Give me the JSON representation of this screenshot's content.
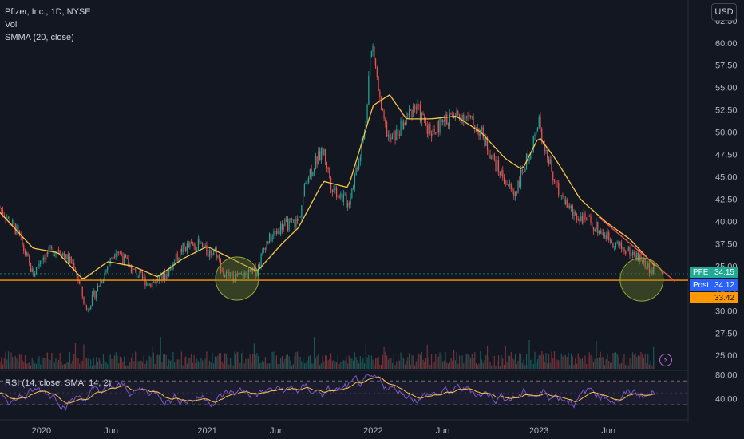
{
  "header": {
    "symbol": "Pfizer, Inc., 1D, NYSE",
    "vol_label": "Vol",
    "smma_label": "SMMA (20, close)",
    "rsi_label": "RSI (14, close, SMA, 14, 2)",
    "currency_button": "USD"
  },
  "badges": {
    "pfe_label": "PFE",
    "pfe_value": "34.15",
    "post_label": "Post",
    "post_value": "34.12",
    "line_value": "33.42"
  },
  "icons": {
    "flash": "lightning-icon"
  },
  "colors": {
    "background": "#131722",
    "up": "#26a69a",
    "down": "#ef5350",
    "smma": "#f7c548",
    "rsi": "#7e57c2",
    "rsi_ma": "#f7c548",
    "support_line": "#ff9800",
    "trend_line": "#ef5350"
  },
  "chart_data": {
    "type": "candlestick",
    "price_axis": {
      "ticks": [
        "62.50",
        "60.00",
        "57.50",
        "55.00",
        "52.50",
        "50.00",
        "47.50",
        "45.00",
        "42.50",
        "40.00",
        "37.50",
        "35.00",
        "32.50",
        "30.00",
        "27.50",
        "25.00"
      ],
      "range": [
        23.5,
        63.2
      ]
    },
    "rsi_axis": {
      "ticks": [
        "80.00",
        "40.00"
      ],
      "range": [
        10,
        85
      ]
    },
    "time_axis": {
      "ticks": [
        "2020",
        "Jun",
        "2021",
        "Jun",
        "2022",
        "Jun",
        "2023",
        "Jun"
      ]
    },
    "price_path": [
      [
        2019.75,
        41.5
      ],
      [
        2019.85,
        39
      ],
      [
        2019.95,
        34
      ],
      [
        2020.0,
        36
      ],
      [
        2020.1,
        37
      ],
      [
        2020.2,
        35
      ],
      [
        2020.27,
        30
      ],
      [
        2020.35,
        33
      ],
      [
        2020.45,
        37
      ],
      [
        2020.55,
        34.5
      ],
      [
        2020.65,
        33
      ],
      [
        2020.75,
        34
      ],
      [
        2020.85,
        37
      ],
      [
        2020.95,
        37.5
      ],
      [
        2021.0,
        36.5
      ],
      [
        2021.05,
        36.8
      ],
      [
        2021.1,
        34
      ],
      [
        2021.2,
        33.8
      ],
      [
        2021.3,
        34.5
      ],
      [
        2021.35,
        37.5
      ],
      [
        2021.45,
        39.5
      ],
      [
        2021.55,
        40
      ],
      [
        2021.6,
        45
      ],
      [
        2021.7,
        48
      ],
      [
        2021.75,
        44
      ],
      [
        2021.85,
        42
      ],
      [
        2021.95,
        50
      ],
      [
        2021.98,
        58
      ],
      [
        2022.0,
        59.5
      ],
      [
        2022.05,
        52
      ],
      [
        2022.1,
        49
      ],
      [
        2022.15,
        50
      ],
      [
        2022.25,
        53
      ],
      [
        2022.35,
        50
      ],
      [
        2022.45,
        51.5
      ],
      [
        2022.55,
        52
      ],
      [
        2022.65,
        50
      ],
      [
        2022.75,
        46
      ],
      [
        2022.85,
        43
      ],
      [
        2022.95,
        48
      ],
      [
        2023.0,
        51
      ],
      [
        2023.1,
        44
      ],
      [
        2023.2,
        41
      ],
      [
        2023.3,
        40
      ],
      [
        2023.4,
        38.5
      ],
      [
        2023.5,
        37
      ],
      [
        2023.6,
        36
      ],
      [
        2023.7,
        34.15
      ]
    ],
    "smma_path": [
      [
        2019.75,
        41
      ],
      [
        2019.95,
        37
      ],
      [
        2020.1,
        36.5
      ],
      [
        2020.25,
        33.5
      ],
      [
        2020.4,
        35.5
      ],
      [
        2020.55,
        35
      ],
      [
        2020.7,
        33.8
      ],
      [
        2020.85,
        35.8
      ],
      [
        2021.0,
        37.2
      ],
      [
        2021.15,
        35.8
      ],
      [
        2021.3,
        34.4
      ],
      [
        2021.45,
        37.5
      ],
      [
        2021.55,
        39.3
      ],
      [
        2021.7,
        44.5
      ],
      [
        2021.85,
        43.8
      ],
      [
        2022.0,
        53
      ],
      [
        2022.1,
        54.2
      ],
      [
        2022.2,
        51.5
      ],
      [
        2022.35,
        51.5
      ],
      [
        2022.5,
        51.8
      ],
      [
        2022.65,
        50
      ],
      [
        2022.8,
        47
      ],
      [
        2022.9,
        45.8
      ],
      [
        2023.0,
        49.5
      ],
      [
        2023.1,
        47
      ],
      [
        2023.25,
        42.5
      ],
      [
        2023.4,
        40
      ],
      [
        2023.55,
        38
      ],
      [
        2023.7,
        35
      ]
    ],
    "support_line": {
      "price": 33.42
    },
    "trend_line": {
      "from": [
        2023.36,
        40.5
      ],
      "to": [
        2023.82,
        33.3
      ]
    },
    "highlight_circles": [
      {
        "x": 2021.18,
        "y": 33.6
      },
      {
        "x": 2023.62,
        "y": 33.5
      }
    ],
    "rsi_bands": [
      70,
      30
    ],
    "last_price": 34.15
  }
}
